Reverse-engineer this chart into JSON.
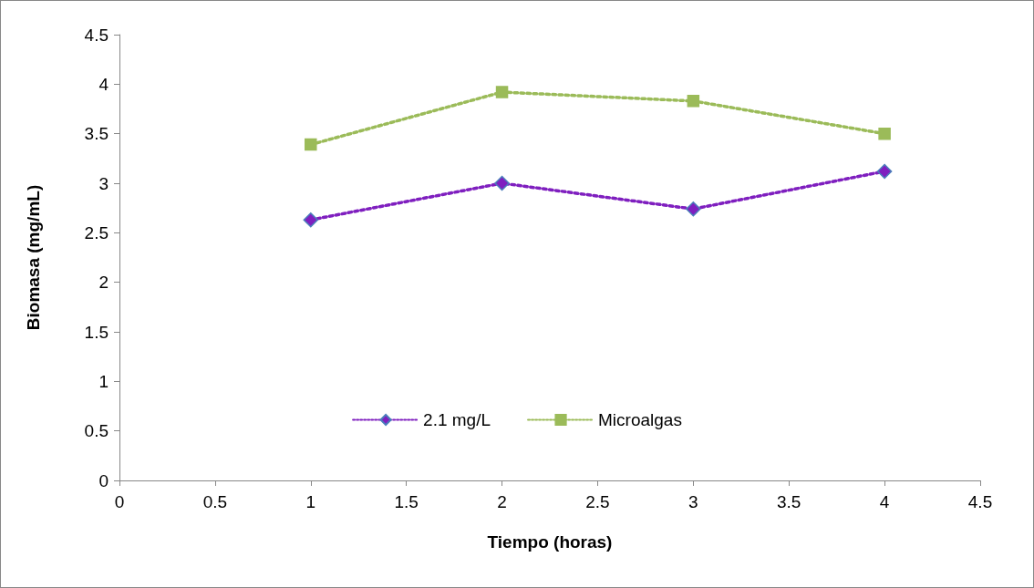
{
  "chart_data": {
    "type": "line",
    "xlabel": "Tiempo (horas)",
    "ylabel": "Biomasa (mg/mL)",
    "x": [
      1,
      2,
      3,
      4
    ],
    "series": [
      {
        "name": "2.1 mg/L",
        "color": "#7f1fbf",
        "marker": "diamond",
        "values": [
          2.63,
          3.0,
          2.74,
          3.12
        ]
      },
      {
        "name": "Microalgas",
        "color": "#9bbb59",
        "marker": "square",
        "values": [
          3.39,
          3.92,
          3.83,
          3.5
        ]
      }
    ],
    "xlim": [
      0,
      4.5
    ],
    "xticks": [
      0,
      0.5,
      1,
      1.5,
      2,
      2.5,
      3,
      3.5,
      4,
      4.5
    ],
    "ylim": [
      0,
      4.5
    ],
    "yticks": [
      0,
      0.5,
      1,
      1.5,
      2,
      2.5,
      3,
      3.5,
      4,
      4.5
    ],
    "grid": false,
    "legend": "bottom",
    "line_style": "dotted"
  }
}
